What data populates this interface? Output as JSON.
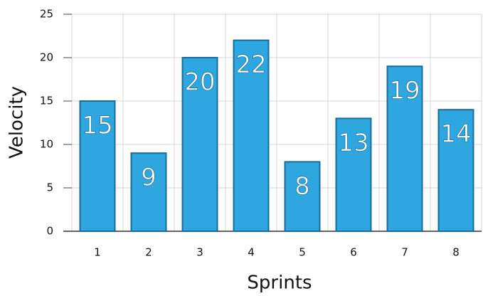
{
  "chart_data": {
    "type": "bar",
    "x_label": "Sprints",
    "y_label": "Velocity",
    "categories": [
      "1",
      "2",
      "3",
      "4",
      "5",
      "6",
      "7",
      "8"
    ],
    "values": [
      15,
      9,
      20,
      22,
      8,
      13,
      19,
      14
    ],
    "color": "#2ea6df",
    "ylim": [
      0,
      25
    ],
    "yticks": [
      0,
      5,
      10,
      15,
      20,
      25
    ],
    "grid": true
  }
}
